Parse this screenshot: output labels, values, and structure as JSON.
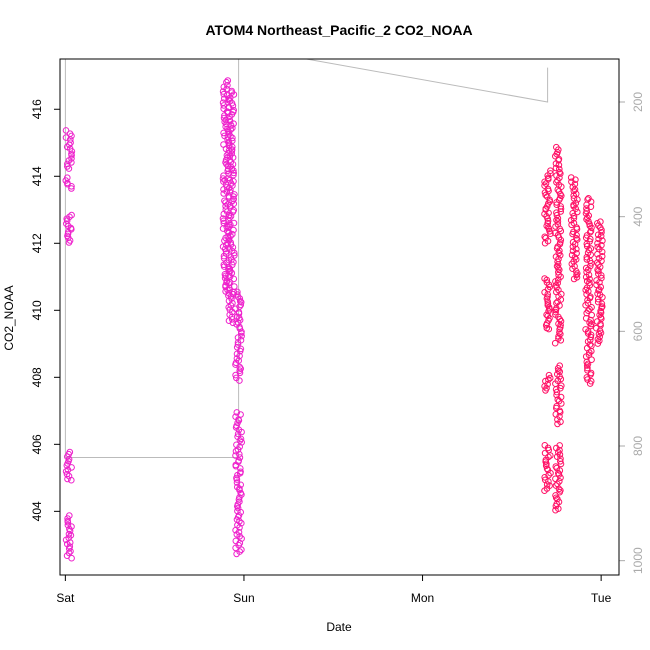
{
  "chart_data": {
    "type": "scatter",
    "title": "ATOM4 Northeast_Pacific_2 CO2_NOAA",
    "xlabel": "Date",
    "ylabel": "CO2_NOAA",
    "x_ticks": [
      "Sat",
      "Sun",
      "Mon",
      "Tue"
    ],
    "y_ticks": [
      404,
      406,
      408,
      410,
      412,
      414,
      416
    ],
    "y2_ticks": [
      200,
      400,
      600,
      800,
      1000
    ],
    "xlim_days": [
      -0.03,
      3.1
    ],
    "ylim": [
      402.1,
      417.5
    ],
    "y2lim": [
      1025,
      125
    ],
    "grid": false,
    "legend": "none",
    "colors": {
      "points_low_alt": "#ee22cc",
      "points_high_alt": "#ff1166",
      "pressure_line": "#bbbbbb",
      "axis": "#000000",
      "right_axis": "#aaaaaa"
    },
    "clusters": [
      {
        "day": 0.02,
        "segments": [
          [
            402.6,
            403.9
          ],
          [
            404.9,
            405.8
          ],
          [
            412.0,
            412.9
          ],
          [
            413.6,
            414.0
          ],
          [
            414.2,
            415.4
          ]
        ]
      },
      {
        "day": 0.9,
        "segments": [
          [
            410.4,
            411.8
          ],
          [
            411.8,
            413.4
          ],
          [
            413.4,
            415.0
          ],
          [
            415.0,
            416.9
          ]
        ]
      },
      {
        "day": 0.93,
        "segments": [
          [
            409.6,
            412.2
          ],
          [
            412.2,
            414.4
          ],
          [
            414.4,
            416.6
          ]
        ]
      },
      {
        "day": 0.97,
        "segments": [
          [
            402.7,
            404.4
          ],
          [
            404.4,
            405.7
          ],
          [
            405.7,
            407.0
          ],
          [
            407.9,
            410.6
          ]
        ]
      },
      {
        "day": 2.7,
        "segments": [
          [
            404.6,
            406.0
          ],
          [
            407.6,
            408.1
          ],
          [
            409.4,
            411.0
          ],
          [
            412.0,
            414.2
          ]
        ]
      },
      {
        "day": 2.76,
        "segments": [
          [
            404.0,
            406.0
          ],
          [
            406.6,
            408.4
          ],
          [
            409.0,
            411.5
          ],
          [
            411.5,
            414.9
          ]
        ]
      },
      {
        "day": 2.85,
        "segments": [
          [
            410.9,
            412.4
          ],
          [
            412.4,
            414.0
          ]
        ]
      },
      {
        "day": 2.93,
        "segments": [
          [
            407.8,
            410.6
          ],
          [
            410.6,
            413.4
          ]
        ]
      },
      {
        "day": 2.99,
        "segments": [
          [
            409.0,
            411.4
          ],
          [
            411.4,
            412.7
          ]
        ]
      }
    ],
    "pressure_series": [
      {
        "day": 0.0,
        "p": 125
      },
      {
        "day": 0.0,
        "p": 820
      },
      {
        "day": 0.97,
        "p": 820
      },
      {
        "day": 0.97,
        "p": 125
      },
      {
        "day": 1.35,
        "p": 125
      },
      {
        "day": 2.7,
        "p": 200
      },
      {
        "day": 2.7,
        "p": 140
      }
    ]
  }
}
